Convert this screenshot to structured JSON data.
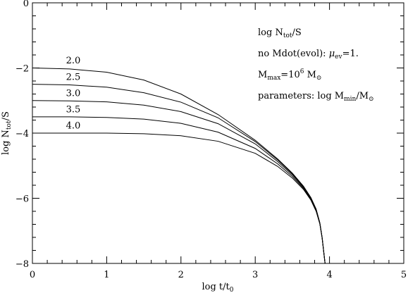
{
  "chart_data": {
    "type": "line",
    "xlabel": "log t/t",
    "xlabel_sub": "0",
    "ylabel": "log N",
    "ylabel_sub": "tot",
    "ylabel_suffix": "/S",
    "xlim": [
      0,
      5
    ],
    "ylim": [
      -8,
      0
    ],
    "xticks": [
      0,
      1,
      2,
      3,
      4,
      5
    ],
    "yticks": [
      0,
      -2,
      -4,
      -6,
      -8
    ],
    "grid": false,
    "annotations": [
      {
        "parts": [
          {
            "t": "log N"
          },
          {
            "t": "tot",
            "sub": true
          },
          {
            "t": "/S"
          }
        ]
      },
      {
        "parts": [
          {
            "t": "no Mdot(evol):  "
          },
          {
            "t": "μ",
            "italic": true
          },
          {
            "t": "ev",
            "sub": true
          },
          {
            "t": "=1."
          }
        ]
      },
      {
        "parts": [
          {
            "t": "M"
          },
          {
            "t": "max",
            "sub": true
          },
          {
            "t": "=10"
          },
          {
            "t": "6",
            "sup": true
          },
          {
            "t": " M"
          },
          {
            "t": "⊙",
            "sub": true
          }
        ]
      },
      {
        "parts": [
          {
            "t": "parameters: log M"
          },
          {
            "t": "min",
            "sub": true
          },
          {
            "t": "/M"
          },
          {
            "t": "⊙",
            "sub": true
          }
        ]
      }
    ],
    "series": [
      {
        "label": "2.0",
        "label_at": [
          0.55,
          -1.95
        ],
        "x": [
          0,
          0.5,
          1.0,
          1.5,
          2.0,
          2.5,
          3.0,
          3.3,
          3.5,
          3.65,
          3.75,
          3.82,
          3.87,
          3.9,
          3.92,
          3.94
        ],
        "y": [
          -2.0,
          -2.03,
          -2.13,
          -2.37,
          -2.8,
          -3.43,
          -4.22,
          -4.79,
          -5.23,
          -5.63,
          -5.98,
          -6.33,
          -6.75,
          -7.2,
          -7.6,
          -8.0
        ]
      },
      {
        "label": "2.5",
        "label_at": [
          0.55,
          -2.45
        ],
        "x": [
          0,
          0.5,
          1.0,
          1.5,
          2.0,
          2.5,
          3.0,
          3.3,
          3.5,
          3.65,
          3.75,
          3.82,
          3.87,
          3.9,
          3.92,
          3.94
        ],
        "y": [
          -2.5,
          -2.52,
          -2.59,
          -2.76,
          -3.05,
          -3.53,
          -4.26,
          -4.82,
          -5.25,
          -5.65,
          -6.0,
          -6.35,
          -6.76,
          -7.2,
          -7.6,
          -8.0
        ]
      },
      {
        "label": "3.0",
        "label_at": [
          0.55,
          -2.95
        ],
        "x": [
          0,
          0.5,
          1.0,
          1.5,
          2.0,
          2.5,
          3.0,
          3.3,
          3.5,
          3.65,
          3.75,
          3.82,
          3.87,
          3.9,
          3.92,
          3.94
        ],
        "y": [
          -3.0,
          -3.01,
          -3.04,
          -3.14,
          -3.34,
          -3.71,
          -4.33,
          -4.87,
          -5.28,
          -5.67,
          -6.02,
          -6.37,
          -6.77,
          -7.2,
          -7.6,
          -8.0
        ]
      },
      {
        "label": "3.5",
        "label_at": [
          0.55,
          -3.45
        ],
        "x": [
          0,
          0.5,
          1.0,
          1.5,
          2.0,
          2.5,
          3.0,
          3.3,
          3.5,
          3.65,
          3.75,
          3.82,
          3.87,
          3.9,
          3.92,
          3.94
        ],
        "y": [
          -3.5,
          -3.5,
          -3.52,
          -3.57,
          -3.7,
          -3.97,
          -4.47,
          -4.94,
          -5.33,
          -5.7,
          -6.04,
          -6.38,
          -6.78,
          -7.2,
          -7.6,
          -8.0
        ]
      },
      {
        "label": "4.0",
        "label_at": [
          0.55,
          -3.95
        ],
        "x": [
          0,
          0.5,
          1.0,
          1.5,
          2.0,
          2.5,
          3.0,
          3.3,
          3.5,
          3.65,
          3.75,
          3.82,
          3.87,
          3.9,
          3.92,
          3.94
        ],
        "y": [
          -4.0,
          -4.0,
          -4.0,
          -4.02,
          -4.08,
          -4.25,
          -4.62,
          -5.02,
          -5.38,
          -5.73,
          -6.06,
          -6.4,
          -6.79,
          -7.2,
          -7.6,
          -8.0
        ]
      }
    ]
  }
}
